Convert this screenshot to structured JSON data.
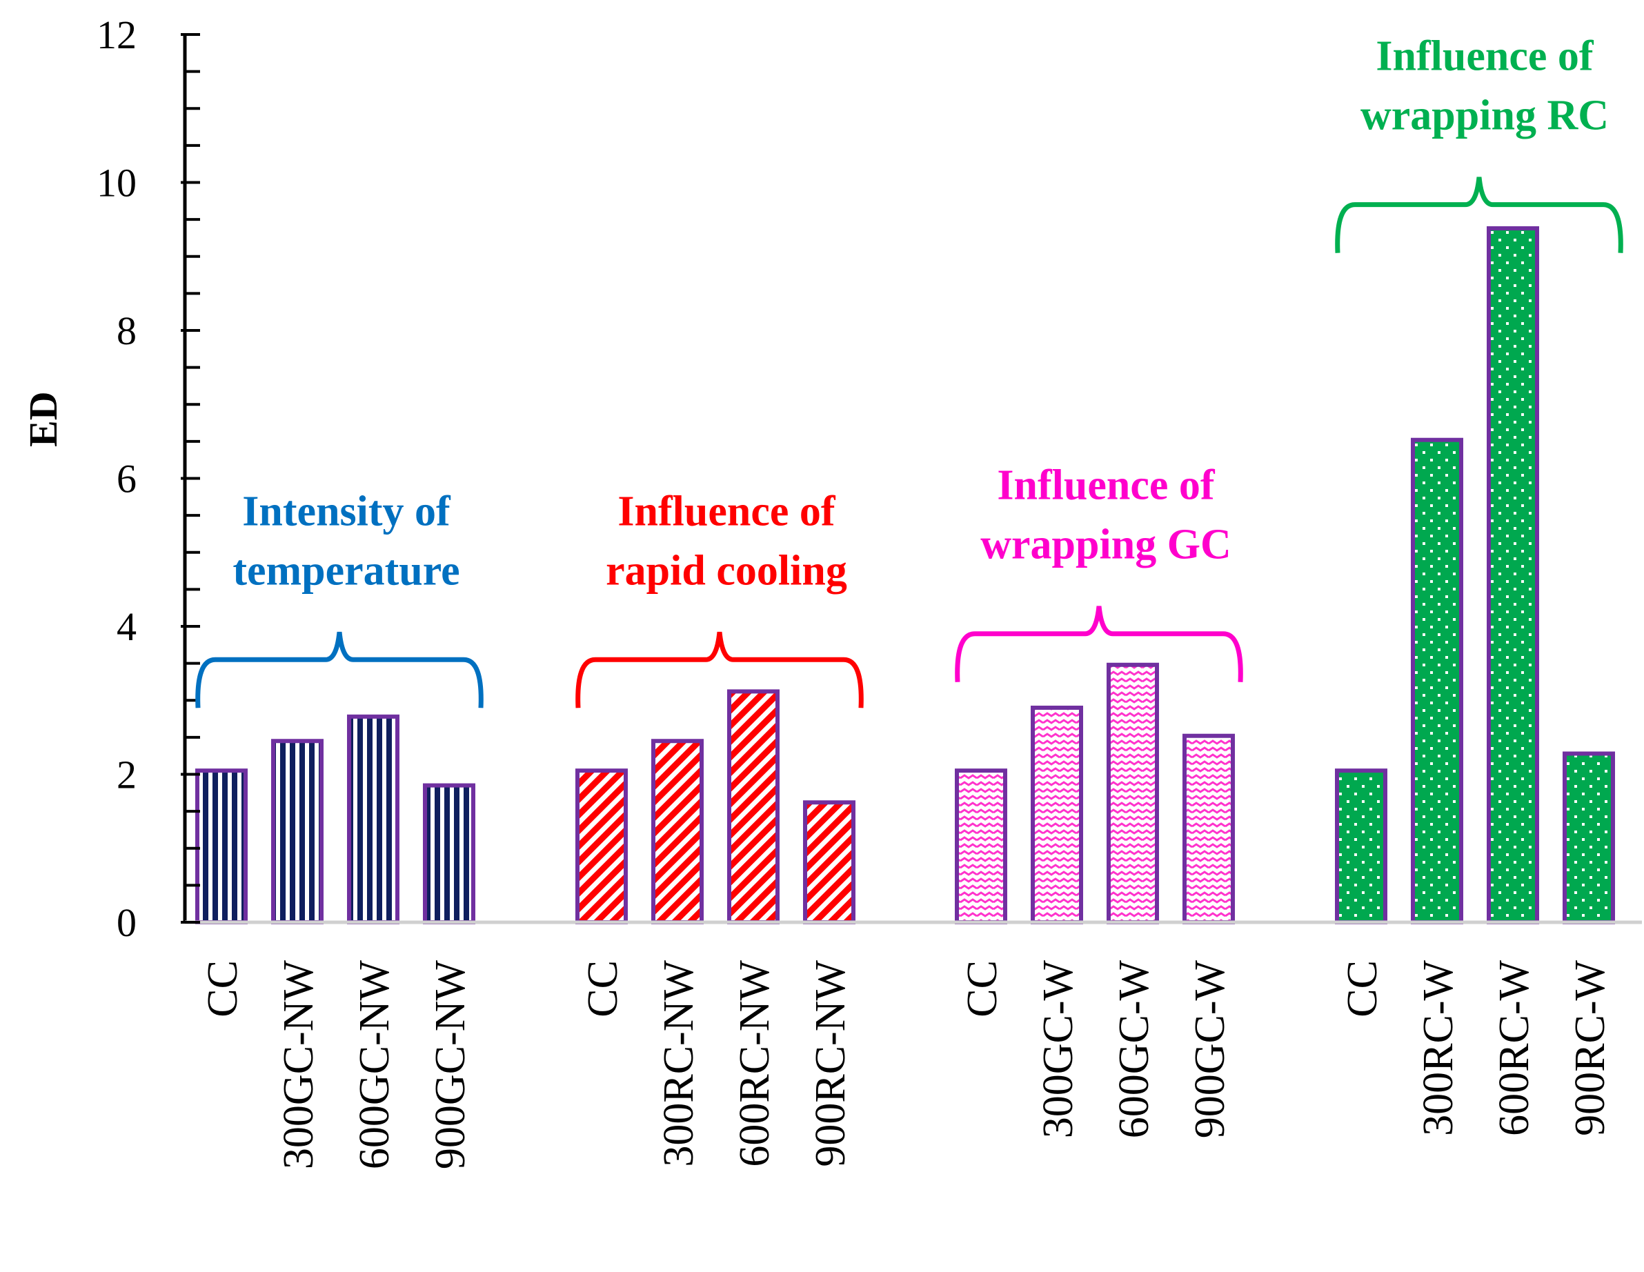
{
  "chart_data": {
    "type": "bar",
    "title": "",
    "xlabel": "",
    "ylabel": "ED",
    "ylim": [
      0,
      12
    ],
    "yticks": [
      0,
      2,
      4,
      6,
      8,
      10,
      12
    ],
    "grid": false,
    "bar_border_color": "#7030a0",
    "groups": [
      {
        "name": "Intensity of temperature",
        "label_lines": [
          "Intensity of",
          "temperature"
        ],
        "color": "#0070c0",
        "pattern": "vertical-stripes",
        "fill_color": "#0f1f5e",
        "categories": [
          "CC",
          "300GC-NW",
          "600GC-NW",
          "900GC-NW"
        ],
        "values": [
          2.05,
          2.45,
          2.78,
          1.85
        ]
      },
      {
        "name": "Influence of rapid cooling",
        "label_lines": [
          "Influence of",
          "rapid cooling"
        ],
        "color": "#ff0000",
        "pattern": "diagonal-stripes",
        "fill_color": "#ff0000",
        "categories": [
          "CC",
          "300RC-NW",
          "600RC-NW",
          "900RC-NW"
        ],
        "values": [
          2.05,
          2.45,
          3.12,
          1.62
        ]
      },
      {
        "name": "Influence of wrapping GC",
        "label_lines": [
          "Influence of",
          "wrapping GC"
        ],
        "color": "#ff00cc",
        "pattern": "zigzag",
        "fill_color": "#ff33cc",
        "categories": [
          "CC",
          "300GC-W",
          "600GC-W",
          "900GC-W"
        ],
        "values": [
          2.05,
          2.9,
          3.48,
          2.52
        ]
      },
      {
        "name": "Influence of wrapping RC",
        "label_lines": [
          "Influence of",
          "wrapping RC"
        ],
        "color": "#00b050",
        "pattern": "dots",
        "fill_color": "#00a84f",
        "categories": [
          "CC",
          "300RC-W",
          "600RC-W",
          "900RC-W"
        ],
        "values": [
          2.05,
          6.52,
          9.38,
          2.28
        ]
      }
    ]
  }
}
